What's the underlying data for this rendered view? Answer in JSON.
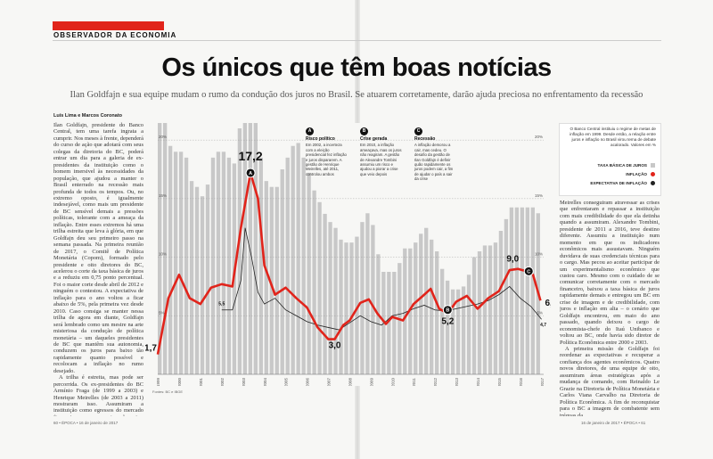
{
  "section_label": "OBSERVADOR DA ECONOMIA",
  "title": "Os únicos que têm boas notícias",
  "subtitle": "Ilan Goldfajn e sua equipe mudam o rumo da condução dos juros no Brasil. Se atuarem corretamente, darão ajuda preciosa no enfrentamento da recessão",
  "byline": "Luís Lima e Marcos Coronato",
  "body_left_1": "Ilan Goldfajn, presidente do Banco Central, tem uma tarefa ingrata a cumprir. Nos meses à frente, dependerá do curso de ação que adotará com seus colegas da diretoria do BC, poderá entrar um dia para a galeria de ex-presidentes da instituição como o homem imersivel às necessidades da população, que ajudou a manter o Brasil enterrado na recessão mais profunda de todos os tempos. Ou, no extremo oposto, é igualmente indesejável, como mais um presidente de BC sensível demais a pressões políticas, tolerante com a ameaça da inflação. Entre esses extremos há uma trilha estreita que leva à glória, em que Goldfajn deu seu primeiro passo na semana passada. Na primeira reunião de 2017, o Comitê de Política Monetária (Copom), formado pelo presidente e oito diretores do BC, acelerou o corte da taxa básica de juros e a reduziu em 0,75 ponto percentual. Foi o maior corte desde abril de 2012 e ninguém o contestou. A expectativa de inflação para o ano voltou a ficar abaixo de 5%, pela primeira vez desde 2010. Caso consiga se manter nessa trilha de agora em diante, Goldfajn será lembrado como um mestre na arte misteriosa da condução de política monetária – um daqueles presidentes de BC que mantêm sua autonomia, conduzem os juros para baixo tão rapidamente quanto possível e recolocam a inflação no rumo desejado.",
  "body_left_2": "A trilha é estreita, mas pode ser percorrida. Os ex-presidentes do BC Armínio Fraga (de 1999 a 2003) e Henrique Meirelles (de 2003 a 2011) mostraram isso. Assumiram a instituição como egressos do mercado financeiro, em momentos de crise. Sobre os dois pesava certa suspeita saudável de que agiriam de forma amigável demais aos bancos, beneficiários dos juros altos. Armínio e",
  "body_right": "Meirelles conseguiram atravessar as crises que enfrentaram e repassar a instituição com mais credibilidade do que ela detinha quando a assumiram. Alexandre Tombini, presidente de 2011 a 2016, teve destino diferente. Assumiu a instituição num momento em que os indicadores econômicos mais assustavam. Ninguém duvidava de suas credenciais técnicas para o cargo. Mas pecou ao aceitar participar de um experimentalismo econômico que custou caro. Mesmo com o cuidado de se comunicar corretamente com o mercado financeiro, baixou a taxa básica de juros rapidamente demais e entregou um BC em crise de imagem e de credibilidade, com juros e inflação em alta – o cenário que Goldfajn encontrou, em maio do ano passado, quando deixou o cargo de economista-chefe do Itaú Unibanco e voltou ao BC, onde havia sido diretor de Política Econômica entre 2000 e 2003.",
  "body_right_2": "A primeira missão de Goldfajn foi reordenar as expectativas e recuperar a confiança dos agentes econômicos. Quatro novos diretores, de uma equipe de oito, assumiram áreas estratégicas após a mudança de comando, com Reinaldo Le Grazie na Diretoria de Política Monetária e Carlos Viana Carvalho na Diretoria de Política Econômica. A fim de reconquistar para o BC a imagem de combatente sem tréguas da",
  "legend": {
    "text": "O Banco Central instituiu o regime de metas de inflação em 1999. Desde então, a relação entre juros e inflação no Brasil virou tema de debate acalorado. Valores em %",
    "item_1": "TAXA BÁSICA DE JUROS",
    "item_2": "INFLAÇÃO",
    "item_3": "EXPECTATIVA DE INFLAÇÃO",
    "color_juros": "#c8c8c8",
    "color_inflacao": "#e1241b",
    "color_expectativa": "#222222"
  },
  "annotations": [
    {
      "badge": "A",
      "title": "Risco político",
      "text": "Em 2002, a incerteza com a eleição presidencial fez inflação e juros dispararem. A gestão de Henrique Meirelles, até 2011, controlou ambos"
    },
    {
      "badge": "B",
      "title": "Crise gerada",
      "text": "Em 2010, a inflação ameaçava, mas os juros não reagiram. A gestão de Alexandre Tombini assumiu um risco e ajudou a piorar a crise que veio depois"
    },
    {
      "badge": "C",
      "title": "Recessão",
      "text": "A inflação demorou a cair, mas cedeu. O desafio da gestão de Ilan Goldfajn é definir quão rapidamente os juros podem cair, a fim de ajudar o país a sair da crise"
    }
  ],
  "source": "Fontes: BC e IBGE",
  "footer_left": "60 • ÉPOCA • 16 de janeiro de 2017",
  "footer_right": "16 de janeiro de 2017 • ÉPOCA • 61",
  "chart_data": {
    "type": "line",
    "x_ticks": [
      "1999",
      "2000",
      "2001",
      "2002",
      "2003",
      "2004",
      "2005",
      "2006",
      "2007",
      "2008",
      "2009",
      "2010",
      "2011",
      "2012",
      "2013",
      "2014",
      "2015",
      "2016",
      "2017"
    ],
    "y_ticks_left": [
      "5%",
      "10%",
      "15%",
      "20%"
    ],
    "y_ticks_right": [
      "5%",
      "10%",
      "15%",
      "20%"
    ],
    "ylim": [
      0,
      21
    ],
    "xlim": [
      1999,
      2017.1
    ],
    "callouts": [
      {
        "label": "1,7",
        "x": 1999.0,
        "y": 1.7
      },
      {
        "label": "17,2",
        "x": 2003.35,
        "y": 17.2
      },
      {
        "label": "3,0",
        "x": 2007.3,
        "y": 3.0
      },
      {
        "label": "5,2",
        "x": 2012.6,
        "y": 5.2
      },
      {
        "label": "9,0",
        "x": 2015.9,
        "y": 9.0
      },
      {
        "label": "6,3",
        "x": 2016.95,
        "y": 6.3
      },
      {
        "label": "5,5",
        "x": 2002.0,
        "y": 5.5
      },
      {
        "label": "4,7",
        "x": 2017.0,
        "y": 4.7
      }
    ],
    "markers": [
      {
        "badge": "A",
        "x": 2003.35,
        "y": 17.2
      },
      {
        "badge": "B",
        "x": 2012.6,
        "y": 5.5
      },
      {
        "badge": "C",
        "x": 2016.4,
        "y": 8.8
      }
    ],
    "series": [
      {
        "name": "TAXA BÁSICA DE JUROS",
        "kind": "bar",
        "x": [
          1999.0,
          1999.25,
          1999.5,
          1999.75,
          2000.0,
          2000.25,
          2000.5,
          2000.75,
          2001.0,
          2001.25,
          2001.5,
          2001.75,
          2002.0,
          2002.25,
          2002.5,
          2002.75,
          2003.0,
          2003.25,
          2003.5,
          2003.75,
          2004.0,
          2004.25,
          2004.5,
          2004.75,
          2005.0,
          2005.25,
          2005.5,
          2005.75,
          2006.0,
          2006.25,
          2006.5,
          2006.75,
          2007.0,
          2007.25,
          2007.5,
          2007.75,
          2008.0,
          2008.25,
          2008.5,
          2008.75,
          2009.0,
          2009.25,
          2009.5,
          2009.75,
          2010.0,
          2010.25,
          2010.5,
          2010.75,
          2011.0,
          2011.25,
          2011.5,
          2011.75,
          2012.0,
          2012.25,
          2012.5,
          2012.75,
          2013.0,
          2013.25,
          2013.5,
          2013.75,
          2014.0,
          2014.25,
          2014.5,
          2014.75,
          2015.0,
          2015.25,
          2015.5,
          2015.75,
          2016.0,
          2016.25,
          2016.5,
          2016.75
        ],
        "values": [
          25,
          22,
          19.5,
          19,
          19,
          18.5,
          16.5,
          16,
          15.2,
          16.2,
          18.5,
          19,
          19,
          18.5,
          18,
          21,
          25.5,
          26.5,
          24.5,
          18.5,
          16.5,
          16,
          16,
          17.5,
          18.5,
          19.5,
          19.75,
          18.5,
          17.2,
          15.7,
          14.7,
          13.7,
          13,
          12.5,
          11.5,
          11.25,
          11.25,
          11.75,
          13,
          13.75,
          12.75,
          10.25,
          8.75,
          8.75,
          8.75,
          9.5,
          10.75,
          10.75,
          11.25,
          12,
          12.5,
          11.5,
          10.5,
          9,
          8,
          7.25,
          7.25,
          7.5,
          8.5,
          10,
          10.5,
          11,
          11,
          11.25,
          12.25,
          13.25,
          14.25,
          14.25,
          14.25,
          14.25,
          14.25,
          13.75
        ]
      },
      {
        "name": "INFLAÇÃO",
        "kind": "line",
        "x": [
          1999.0,
          1999.5,
          2000.0,
          2000.5,
          2001.0,
          2001.5,
          2002.0,
          2002.5,
          2002.9,
          2003.35,
          2003.7,
          2004.0,
          2004.5,
          2005.0,
          2005.5,
          2006.0,
          2006.5,
          2007.0,
          2007.3,
          2007.7,
          2008.0,
          2008.5,
          2008.9,
          2009.3,
          2009.7,
          2010.0,
          2010.5,
          2011.0,
          2011.5,
          2011.8,
          2012.2,
          2012.6,
          2013.0,
          2013.5,
          2014.0,
          2014.5,
          2015.0,
          2015.5,
          2015.9,
          2016.3,
          2016.6,
          2016.95
        ],
        "values": [
          1.7,
          6.5,
          8.5,
          6.5,
          6.0,
          7.4,
          7.7,
          7.5,
          12.5,
          17.2,
          15.0,
          9.3,
          6.8,
          7.4,
          6.5,
          5.7,
          4.0,
          3.0,
          3.0,
          4.2,
          4.6,
          6.1,
          6.4,
          5.2,
          4.3,
          4.9,
          4.6,
          6.0,
          6.8,
          7.3,
          5.6,
          5.2,
          6.2,
          6.7,
          5.6,
          6.5,
          7.1,
          8.9,
          9.0,
          8.8,
          8.5,
          6.3
        ]
      },
      {
        "name": "EXPECTATIVA DE INFLAÇÃO",
        "kind": "line",
        "x": [
          2002.0,
          2002.5,
          2002.9,
          2003.1,
          2003.4,
          2003.7,
          2004.0,
          2004.5,
          2005.0,
          2005.5,
          2006.0,
          2006.5,
          2007.0,
          2007.5,
          2008.0,
          2008.5,
          2009.0,
          2009.5,
          2010.0,
          2010.5,
          2011.0,
          2011.5,
          2012.0,
          2012.5,
          2013.0,
          2013.5,
          2014.0,
          2014.5,
          2015.0,
          2015.5,
          2016.0,
          2016.5,
          2017.0
        ],
        "values": [
          5.5,
          5.5,
          8.0,
          12.5,
          10.0,
          7.0,
          6.0,
          6.5,
          5.5,
          5.0,
          4.5,
          4.2,
          4.0,
          3.8,
          4.4,
          5.0,
          4.5,
          4.2,
          5.0,
          5.2,
          5.6,
          5.9,
          5.5,
          5.4,
          5.6,
          5.8,
          6.0,
          6.3,
          6.8,
          7.5,
          6.5,
          5.8,
          4.7
        ]
      }
    ]
  }
}
